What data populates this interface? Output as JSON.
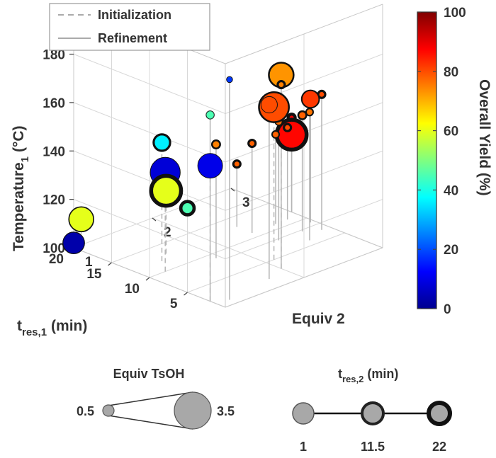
{
  "chart_data": {
    "type": "scatter3d",
    "xlabel": "t",
    "xlabel_sub": "res,1",
    "xlabel_unit": "(min)",
    "ylabel": "Equiv 2",
    "zlabel": "Temperature",
    "zlabel_sub": "1",
    "zlabel_unit": "(°C)",
    "x_ticks": [
      "5",
      "10",
      "15",
      "20"
    ],
    "y_ticks": [
      "1",
      "2",
      "3"
    ],
    "z_ticks": [
      "100",
      "120",
      "140",
      "160",
      "180"
    ],
    "xlim": [
      0,
      20
    ],
    "ylim": [
      1,
      3
    ],
    "zlim": [
      100,
      180
    ],
    "legend": {
      "entries": [
        {
          "label": "Initialization",
          "style": "dashed"
        },
        {
          "label": "Refinement",
          "style": "solid"
        }
      ],
      "placement": "top-left"
    },
    "colorbar": {
      "label": "Overall Yield (%)",
      "ticks": [
        "0",
        "20",
        "40",
        "60",
        "80",
        "100"
      ],
      "range": [
        0,
        100
      ]
    },
    "size_legend": {
      "title": "Equiv TsOH",
      "min_label": "0.5",
      "max_label": "3.5",
      "range": [
        0.5,
        3.5
      ]
    },
    "edge_legend": {
      "title": "t",
      "title_sub": "res,2",
      "title_unit": "(min)",
      "labels": [
        "1",
        "11.5",
        "22"
      ],
      "values": [
        1,
        11.5,
        22
      ]
    },
    "points": [
      {
        "x": 2,
        "y": 1.0,
        "z": 177,
        "yield": 45,
        "equiv_tsoh": 0.6,
        "tres2": 1,
        "phase": "Refinement"
      },
      {
        "x": 2,
        "y": 1.0,
        "z": 156,
        "yield": 10,
        "equiv_tsoh": 2.2,
        "tres2": 1,
        "phase": "Initialization"
      },
      {
        "x": 19,
        "y": 1.0,
        "z": 113,
        "yield": 60,
        "equiv_tsoh": 2.2,
        "tres2": 4,
        "phase": "Initialization"
      },
      {
        "x": 20,
        "y": 1.0,
        "z": 102,
        "yield": 3,
        "equiv_tsoh": 1.9,
        "tres2": 2,
        "phase": "Refinement"
      },
      {
        "x": 1,
        "y": 1.15,
        "z": 191,
        "yield": 18,
        "equiv_tsoh": 0.4,
        "tres2": 1,
        "phase": "Refinement"
      },
      {
        "x": 2,
        "y": 1.75,
        "z": 172,
        "yield": 80,
        "equiv_tsoh": 1.4,
        "tres2": 1,
        "phase": "Refinement"
      },
      {
        "x": 12,
        "y": 1.35,
        "z": 149,
        "yield": 36,
        "equiv_tsoh": 1.4,
        "tres2": 11,
        "phase": "Initialization"
      },
      {
        "x": 10,
        "y": 1.2,
        "z": 141,
        "yield": 8,
        "equiv_tsoh": 2.7,
        "tres2": 1,
        "phase": "Initialization"
      },
      {
        "x": 13,
        "y": 1.5,
        "z": 126,
        "yield": 60,
        "equiv_tsoh": 2.7,
        "tres2": 22,
        "phase": "Initialization"
      },
      {
        "x": 19,
        "y": 2.35,
        "z": 101,
        "yield": 45,
        "equiv_tsoh": 1.1,
        "tres2": 18,
        "phase": "Refinement"
      },
      {
        "x": 5,
        "y": 2.1,
        "z": 163,
        "yield": 80,
        "equiv_tsoh": 2.7,
        "tres2": 8,
        "phase": "Initialization"
      },
      {
        "x": 3,
        "y": 2.0,
        "z": 180,
        "yield": 73,
        "equiv_tsoh": 2.2,
        "tres2": 8,
        "phase": "Initialization"
      },
      {
        "x": 3,
        "y": 2.0,
        "z": 176,
        "yield": 75,
        "equiv_tsoh": 0.5,
        "tres2": 11,
        "phase": "Refinement"
      },
      {
        "x": 9,
        "y": 1.75,
        "z": 147,
        "yield": 75,
        "equiv_tsoh": 0.6,
        "tres2": 8,
        "phase": "Refinement"
      },
      {
        "x": 8,
        "y": 2.45,
        "z": 149,
        "yield": 77,
        "equiv_tsoh": 0.5,
        "tres2": 4,
        "phase": "Refinement"
      },
      {
        "x": 6,
        "y": 2.65,
        "z": 153,
        "yield": 76,
        "equiv_tsoh": 0.5,
        "tres2": 6,
        "phase": "Refinement"
      },
      {
        "x": 8,
        "y": 2.75,
        "z": 148,
        "yield": 78,
        "equiv_tsoh": 0.6,
        "tres2": 8,
        "phase": "Refinement"
      },
      {
        "x": 9,
        "y": 2.95,
        "z": 151,
        "yield": 82,
        "equiv_tsoh": 1.5,
        "tres2": 6,
        "phase": "Refinement"
      },
      {
        "x": 7,
        "y": 2.9,
        "z": 156,
        "yield": 80,
        "equiv_tsoh": 0.5,
        "tres2": 11,
        "phase": "Refinement"
      },
      {
        "x": 11,
        "y": 2.4,
        "z": 137,
        "yield": 78,
        "equiv_tsoh": 0.5,
        "tres2": 11,
        "phase": "Refinement"
      },
      {
        "x": 11,
        "y": 2.7,
        "z": 137,
        "yield": 78,
        "equiv_tsoh": 0.5,
        "tres2": 6,
        "phase": "Refinement"
      },
      {
        "x": 11,
        "y": 2.85,
        "z": 138,
        "yield": 80,
        "equiv_tsoh": 0.5,
        "tres2": 11,
        "phase": "Refinement"
      },
      {
        "x": 12,
        "y": 3.0,
        "z": 139,
        "yield": 88,
        "equiv_tsoh": 0.5,
        "tres2": 16,
        "phase": "Refinement"
      },
      {
        "x": 13,
        "y": 2.4,
        "z": 126,
        "yield": 78,
        "equiv_tsoh": 0.5,
        "tres2": 11,
        "phase": "Refinement"
      },
      {
        "x": 12,
        "y": 3.0,
        "z": 132,
        "yield": 87,
        "equiv_tsoh": 2.7,
        "tres2": 22,
        "phase": "Refinement"
      }
    ]
  }
}
